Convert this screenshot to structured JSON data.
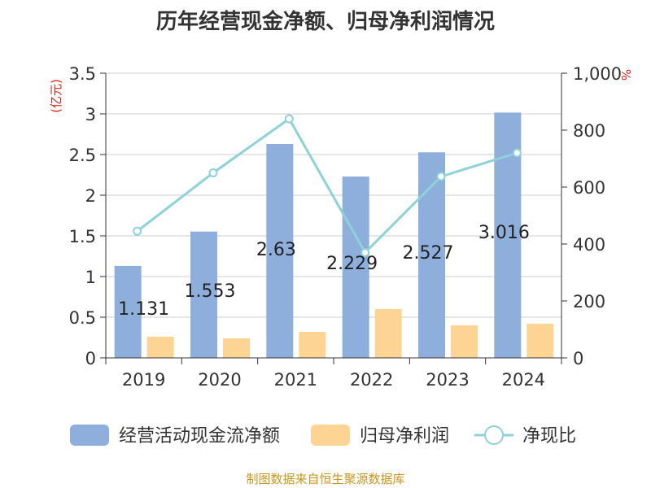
{
  "chart_data": {
    "type": "bar",
    "title": "历年经营现金净额、归母净利润情况",
    "categories": [
      "2019",
      "2020",
      "2021",
      "2022",
      "2023",
      "2024"
    ],
    "ylabel_left": "(亿元)",
    "ylabel_right": "%",
    "ylim_left": [
      0,
      3.5
    ],
    "ylim_right": [
      0,
      1000
    ],
    "yticks_left": [
      "0",
      "0.5",
      "1",
      "1.5",
      "2",
      "2.5",
      "3",
      "3.5"
    ],
    "yticks_right": [
      "0",
      "200",
      "400",
      "600",
      "800",
      "1,000"
    ],
    "grid": true,
    "legend_position": "bottom",
    "series": [
      {
        "name": "经营活动现金流净额",
        "kind": "bar",
        "axis": "left",
        "color": "#8eaedc",
        "values": [
          1.131,
          1.553,
          2.63,
          2.229,
          2.527,
          3.016
        ],
        "labels": [
          "1.131",
          "1.553",
          "2.63",
          "2.229",
          "2.527",
          "3.016"
        ]
      },
      {
        "name": "归母净利润",
        "kind": "bar",
        "axis": "left",
        "color": "#fdd494",
        "values": [
          0.26,
          0.24,
          0.32,
          0.6,
          0.4,
          0.42
        ]
      },
      {
        "name": "净现比",
        "kind": "line",
        "axis": "right",
        "color": "#8dd2d9",
        "values": [
          445,
          650,
          840,
          370,
          637,
          720
        ]
      }
    ]
  },
  "footer": {
    "source": "制图数据来自恒生聚源数据库"
  }
}
